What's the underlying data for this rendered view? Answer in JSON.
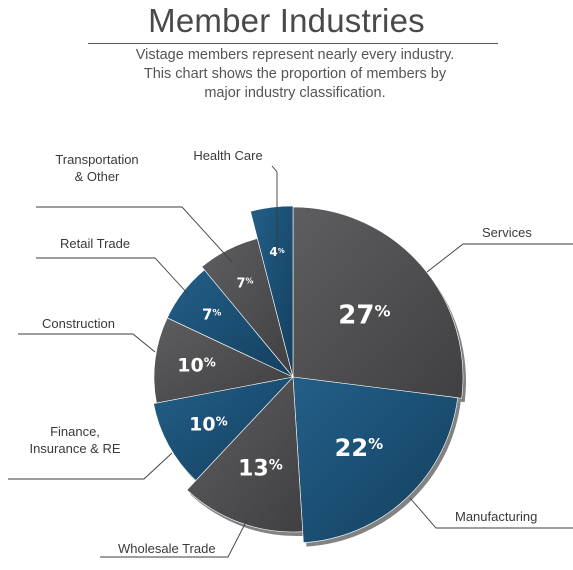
{
  "header": {
    "title": "Member Industries",
    "subtitle_lines": [
      "Vistage members represent nearly every industry.",
      "This chart shows the proportion of members by",
      "major industry classification."
    ]
  },
  "colors": {
    "gray": "#545456",
    "blue": "#1e5a82"
  },
  "chart_data": {
    "type": "pie",
    "title": "Member Industries",
    "unit": "%",
    "slices": [
      {
        "label": "Services",
        "value": 27,
        "display": "27%",
        "color": "#545456"
      },
      {
        "label": "Manufacturing",
        "value": 22,
        "display": "22%",
        "color": "#1e5a82"
      },
      {
        "label": "Wholesale Trade",
        "value": 13,
        "display": "13%",
        "color": "#545456"
      },
      {
        "label": "Finance, Insurance & RE",
        "label_lines": [
          "Finance,",
          "Insurance & RE"
        ],
        "value": 10,
        "display": "10%",
        "color": "#1e5a82"
      },
      {
        "label": "Construction",
        "value": 10,
        "display": "10%",
        "color": "#545456"
      },
      {
        "label": "Retail Trade",
        "value": 7,
        "display": "7%",
        "color": "#1e5a82"
      },
      {
        "label": "Transportation & Other",
        "label_lines": [
          "Transportation",
          "& Other"
        ],
        "value": 7,
        "display": "7%",
        "color": "#545456"
      },
      {
        "label": "Health Care",
        "value": 4,
        "display": "4%",
        "color": "#1e5a82"
      }
    ]
  }
}
